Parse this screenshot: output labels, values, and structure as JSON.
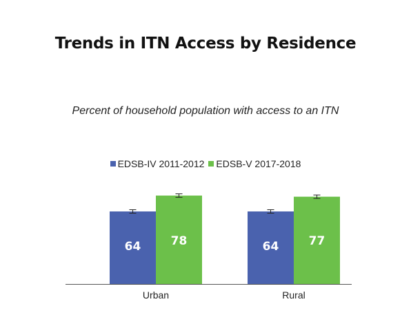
{
  "chart_data": {
    "type": "bar",
    "title": "Trends in ITN Access by Residence",
    "subtitle": "Percent of household population with access to an ITN",
    "categories": [
      "Urban",
      "Rural"
    ],
    "series": [
      {
        "name": "EDSB-IV 2011-2012",
        "values": [
          64,
          64
        ],
        "color": "#4a62ae"
      },
      {
        "name": "EDSB-V 2017-2018",
        "values": [
          78,
          77
        ],
        "color": "#6cc04a"
      }
    ],
    "error_bars": true,
    "legend_position": "top-center",
    "ylim": [
      0,
      100
    ],
    "grid": false
  }
}
